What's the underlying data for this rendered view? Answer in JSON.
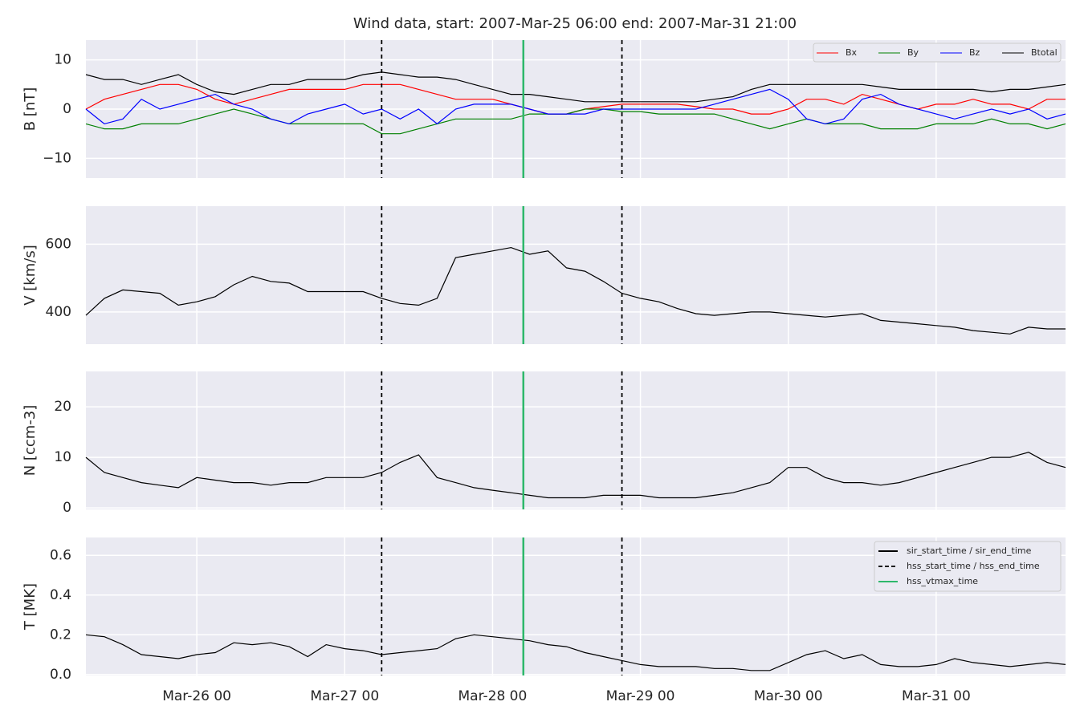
{
  "title": "Wind data, start: 2007-Mar-25 06:00  end: 2007-Mar-31 21:00",
  "chart_data": [
    {
      "type": "line",
      "ylabel": "B [nT]",
      "ylim": [
        -14,
        14
      ],
      "yticks": [
        {
          "value": -10,
          "label": "−10"
        },
        0,
        10
      ],
      "grid": true,
      "sharex": true,
      "legend": "upper right",
      "series": [
        {
          "name": "Bx",
          "color": "#ff0000",
          "values": [
            0,
            2,
            3,
            4,
            5,
            5,
            4,
            2,
            1,
            2,
            3,
            4,
            4,
            4,
            4,
            5,
            5,
            5,
            4,
            3,
            2,
            2,
            2,
            1,
            0,
            -1,
            -1,
            0,
            0.5,
            1,
            1,
            1,
            1,
            0.5,
            0,
            0,
            -1,
            -1,
            0,
            2,
            2,
            1,
            3,
            2,
            1,
            0,
            1,
            1,
            2,
            1,
            1,
            0,
            2,
            2
          ]
        },
        {
          "name": "By",
          "color": "#008000",
          "values": [
            -3,
            -4,
            -4,
            -3,
            -3,
            -3,
            -2,
            -1,
            0,
            -1,
            -2,
            -3,
            -3,
            -3,
            -3,
            -3,
            -5,
            -5,
            -4,
            -3,
            -2,
            -2,
            -2,
            -2,
            -1,
            -1,
            -1,
            0,
            0,
            -0.5,
            -0.5,
            -1,
            -1,
            -1,
            -1,
            -2,
            -3,
            -4,
            -3,
            -2,
            -3,
            -3,
            -3,
            -4,
            -4,
            -4,
            -3,
            -3,
            -3,
            -2,
            -3,
            -3,
            -4,
            -3
          ]
        },
        {
          "name": "Bz",
          "color": "#0000ff",
          "values": [
            0,
            -3,
            -2,
            2,
            0,
            1,
            2,
            3,
            1,
            0,
            -2,
            -3,
            -1,
            0,
            1,
            -1,
            0,
            -2,
            0,
            -3,
            0,
            1,
            1,
            1,
            0,
            -1,
            -1,
            -1,
            0,
            0,
            0,
            0,
            0,
            0,
            1,
            2,
            3,
            4,
            2,
            -2,
            -3,
            -2,
            2,
            3,
            1,
            0,
            -1,
            -2,
            -1,
            0,
            -1,
            0,
            -2,
            -1
          ]
        },
        {
          "name": "Btotal",
          "color": "#000000",
          "values": [
            7,
            6,
            6,
            5,
            6,
            7,
            5,
            3.5,
            3,
            4,
            5,
            5,
            6,
            6,
            6,
            7,
            7.5,
            7,
            6.5,
            6.5,
            6,
            5,
            4,
            3,
            3,
            2.5,
            2,
            1.5,
            1.5,
            1.5,
            1.5,
            1.5,
            1.5,
            1.5,
            2,
            2.5,
            4,
            5,
            5,
            5,
            5,
            5,
            5,
            4.5,
            4,
            4,
            4,
            4,
            4,
            3.5,
            4,
            4,
            4.5,
            5
          ]
        }
      ]
    },
    {
      "type": "line",
      "ylabel": "V [km/s]",
      "ylim": [
        305,
        712
      ],
      "yticks": [
        400,
        600
      ],
      "grid": true,
      "sharex": true,
      "color": "#000000",
      "values": [
        390,
        440,
        465,
        460,
        455,
        420,
        430,
        445,
        480,
        505,
        490,
        485,
        460,
        460,
        460,
        460,
        440,
        425,
        420,
        440,
        560,
        570,
        580,
        590,
        570,
        580,
        530,
        520,
        490,
        455,
        440,
        430,
        410,
        395,
        390,
        395,
        400,
        400,
        395,
        390,
        385,
        390,
        395,
        375,
        370,
        365,
        360,
        355,
        345,
        340,
        335,
        355,
        350,
        350
      ]
    },
    {
      "type": "line",
      "ylabel": "N [ccm-3]",
      "ylim": [
        -0.3,
        27
      ],
      "yticks": [
        0,
        10,
        20
      ],
      "grid": true,
      "sharex": true,
      "color": "#000000",
      "values": [
        10,
        7,
        6,
        5,
        4.5,
        4,
        6,
        5.5,
        5,
        5,
        4.5,
        5,
        5,
        6,
        6,
        6,
        7,
        9,
        10.5,
        6,
        5,
        4,
        3.5,
        3,
        2.5,
        2,
        2,
        2,
        2.5,
        2.5,
        2.5,
        2,
        2,
        2,
        2.5,
        3,
        4,
        5,
        8,
        8,
        6,
        5,
        5,
        4.5,
        5,
        6,
        7,
        8,
        9,
        10,
        10,
        11,
        9,
        8
      ]
    },
    {
      "type": "line",
      "ylabel": "T [MK]",
      "ylim": [
        -0.005,
        0.69
      ],
      "yticks": [
        {
          "value": 0,
          "label": "0.0"
        },
        0.2,
        0.4,
        0.6
      ],
      "grid": true,
      "color": "#000000",
      "legend": "upper right",
      "values": [
        0.2,
        0.19,
        0.15,
        0.1,
        0.09,
        0.08,
        0.1,
        0.11,
        0.16,
        0.15,
        0.16,
        0.14,
        0.09,
        0.15,
        0.13,
        0.12,
        0.1,
        0.11,
        0.12,
        0.13,
        0.18,
        0.2,
        0.19,
        0.18,
        0.17,
        0.15,
        0.14,
        0.11,
        0.09,
        0.07,
        0.05,
        0.04,
        0.04,
        0.04,
        0.03,
        0.03,
        0.02,
        0.02,
        0.06,
        0.1,
        0.12,
        0.08,
        0.1,
        0.05,
        0.04,
        0.04,
        0.05,
        0.08,
        0.06,
        0.05,
        0.04,
        0.05,
        0.06,
        0.05
      ],
      "x": [
        "Mar-25 06",
        "Mar-25 09",
        "Mar-25 12",
        "Mar-25 15",
        "Mar-25 18",
        "Mar-25 21",
        "Mar-26 00",
        "Mar-26 03",
        "Mar-26 06",
        "Mar-26 09",
        "Mar-26 12",
        "Mar-26 15",
        "Mar-26 18",
        "Mar-26 21",
        "Mar-27 00",
        "Mar-27 03",
        "Mar-27 06",
        "Mar-27 09",
        "Mar-27 12",
        "Mar-27 15",
        "Mar-27 18",
        "Mar-27 21",
        "Mar-28 00",
        "Mar-28 03",
        "Mar-28 06",
        "Mar-28 09",
        "Mar-28 12",
        "Mar-28 15",
        "Mar-28 18",
        "Mar-28 21",
        "Mar-29 00",
        "Mar-29 03",
        "Mar-29 06",
        "Mar-29 09",
        "Mar-29 12",
        "Mar-29 15",
        "Mar-29 18",
        "Mar-29 21",
        "Mar-30 00",
        "Mar-30 03",
        "Mar-30 06",
        "Mar-30 09",
        "Mar-30 12",
        "Mar-30 15",
        "Mar-30 18",
        "Mar-30 21",
        "Mar-31 00",
        "Mar-31 03",
        "Mar-31 06",
        "Mar-31 09",
        "Mar-31 12",
        "Mar-31 15",
        "Mar-31 18",
        "Mar-31 21"
      ],
      "xlim": [
        "Mar-25 06",
        "Mar-31 21"
      ],
      "xticks": [
        "Mar-26 00",
        "Mar-27 00",
        "Mar-28 00",
        "Mar-29 00",
        "Mar-30 00",
        "Mar-31 00"
      ],
      "event_lines": [
        {
          "name": "sir_start_time / sir_end_time",
          "color": "#000000",
          "dash": false,
          "x": []
        },
        {
          "name": "hss_start_time / hss_end_time",
          "color": "#000000",
          "dash": true,
          "x": [
            "Mar-27 06",
            "Mar-28 21"
          ]
        },
        {
          "name": "hss_vtmax_time",
          "color": "#2eb86b",
          "dash": false,
          "x": [
            "Mar-28 05"
          ]
        }
      ]
    }
  ]
}
